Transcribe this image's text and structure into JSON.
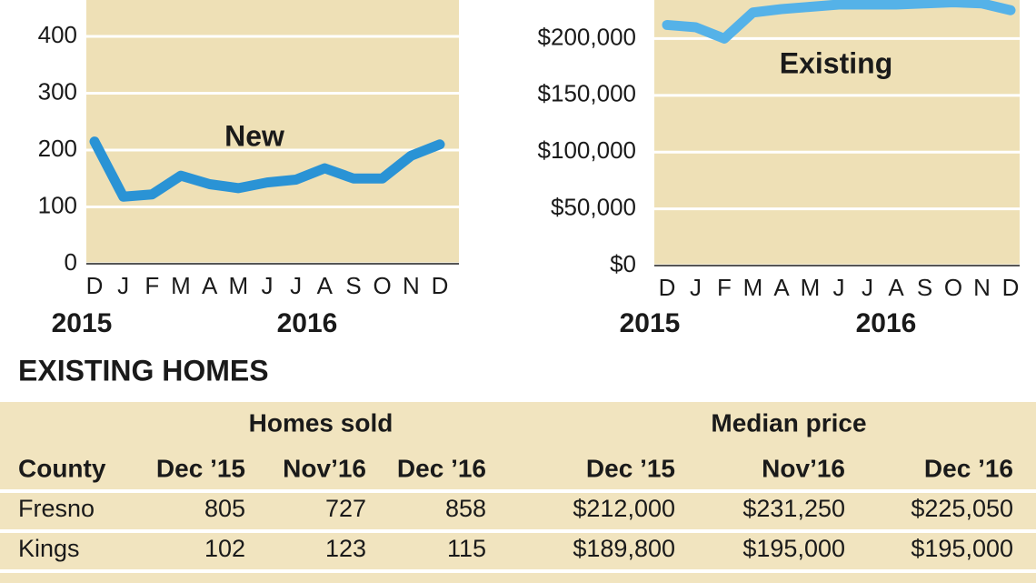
{
  "chart_data": [
    {
      "type": "line",
      "annotation": "New",
      "categories": [
        "D",
        "J",
        "F",
        "M",
        "A",
        "M",
        "J",
        "J",
        "A",
        "S",
        "O",
        "N",
        "D"
      ],
      "years": [
        "2015",
        "2016"
      ],
      "series": [
        {
          "name": "New",
          "color": "#2a93d5",
          "values": [
            215,
            118,
            122,
            155,
            140,
            133,
            143,
            148,
            168,
            150,
            150,
            190,
            210
          ]
        }
      ],
      "ylim": [
        0,
        464
      ],
      "yticks": [
        0,
        100,
        200,
        300,
        400
      ],
      "grid": true
    },
    {
      "type": "line",
      "annotation": "Existing",
      "categories": [
        "D",
        "J",
        "F",
        "M",
        "A",
        "M",
        "J",
        "J",
        "A",
        "S",
        "O",
        "N",
        "D"
      ],
      "years": [
        "2015",
        "2016"
      ],
      "series": [
        {
          "name": "Existing",
          "color": "#55b2e8",
          "values": [
            212000,
            210000,
            200000,
            223000,
            226000,
            228000,
            230000,
            230000,
            230000,
            231000,
            232000,
            231000,
            225000
          ]
        }
      ],
      "ylim": [
        0,
        234000
      ],
      "yticks": [
        {
          "value": 0,
          "label": "$0"
        },
        {
          "value": 50000,
          "label": "$50,000"
        },
        {
          "value": 100000,
          "label": "$100,000"
        },
        {
          "value": 150000,
          "label": "$150,000"
        },
        {
          "value": 200000,
          "label": "$200,000"
        }
      ],
      "grid": true
    }
  ],
  "table": {
    "title": "EXISTING HOMES",
    "groups": [
      "Homes sold",
      "Median price"
    ],
    "columns": [
      "County",
      "Dec ’15",
      "Nov’16",
      "Dec ’16",
      "Dec ’15",
      "Nov’16",
      "Dec ’16"
    ],
    "rows": [
      [
        "Fresno",
        "805",
        "727",
        "858",
        "$212,000",
        "$231,250",
        "$225,050"
      ],
      [
        "Kings",
        "102",
        "123",
        "115",
        "$189,800",
        "$195,000",
        "$195,000"
      ]
    ]
  }
}
